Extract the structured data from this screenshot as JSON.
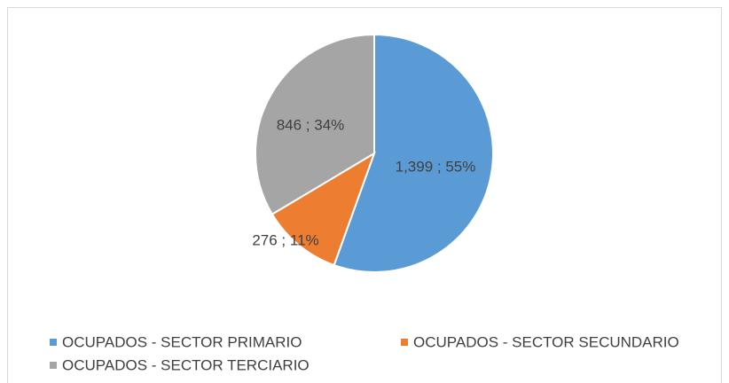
{
  "chart_data": {
    "type": "pie",
    "categories": [
      "OCUPADOS - SECTOR PRIMARIO",
      "OCUPADOS - SECTOR SECUNDARIO",
      "OCUPADOS - SECTOR TERCIARIO"
    ],
    "values": [
      1399,
      276,
      846
    ],
    "value_labels": [
      "1,399 ; 55%",
      "276 ; 11%",
      "846 ; 34%"
    ],
    "colors": [
      "#5b9bd5",
      "#ed7d31",
      "#a5a5a5"
    ],
    "legend": "bottom"
  }
}
